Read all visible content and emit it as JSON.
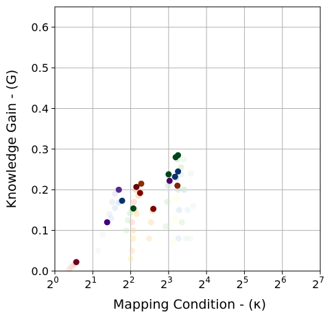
{
  "chart_data": {
    "type": "scatter",
    "title": "",
    "xlabel": "Mapping Condition - (κ)",
    "ylabel": "Knowledge Gain - (G)",
    "x_scale": "log2",
    "xlim": [
      1,
      128
    ],
    "ylim": [
      0,
      0.65
    ],
    "grid": true,
    "x_ticks": [
      {
        "value": 1,
        "base": "2",
        "exp": "0"
      },
      {
        "value": 2,
        "base": "2",
        "exp": "1"
      },
      {
        "value": 4,
        "base": "2",
        "exp": "2"
      },
      {
        "value": 8,
        "base": "2",
        "exp": "3"
      },
      {
        "value": 16,
        "base": "2",
        "exp": "4"
      },
      {
        "value": 32,
        "base": "2",
        "exp": "5"
      },
      {
        "value": 64,
        "base": "2",
        "exp": "6"
      },
      {
        "value": 128,
        "base": "2",
        "exp": "7"
      }
    ],
    "y_ticks": [
      {
        "value": 0.0,
        "label": "0.0"
      },
      {
        "value": 0.1,
        "label": "0.1"
      },
      {
        "value": 0.2,
        "label": "0.2"
      },
      {
        "value": 0.3,
        "label": "0.3"
      },
      {
        "value": 0.4,
        "label": "0.4"
      },
      {
        "value": 0.5,
        "label": "0.5"
      },
      {
        "value": 0.6,
        "label": "0.6"
      }
    ],
    "series": [
      {
        "color": "#6b0120",
        "trail_color": "#f6c9b6",
        "points": [
          {
            "x": 1.3,
            "y": 0.005
          },
          {
            "x": 1.36,
            "y": 0.01
          },
          {
            "x": 1.42,
            "y": 0.016
          },
          {
            "x": 1.46,
            "y": 0.021
          },
          {
            "x": 1.48,
            "y": 0.022
          }
        ]
      },
      {
        "color": "#54278f",
        "trail_color": "#dadaeb",
        "points": [
          {
            "x": 2.7,
            "y": 0.14
          },
          {
            "x": 2.85,
            "y": 0.17
          },
          {
            "x": 3.0,
            "y": 0.19
          },
          {
            "x": 3.15,
            "y": 0.2
          },
          {
            "x": 3.22,
            "y": 0.2
          }
        ]
      },
      {
        "color": "#08306b",
        "trail_color": "#c6dbef",
        "points": [
          {
            "x": 2.8,
            "y": 0.13
          },
          {
            "x": 3.0,
            "y": 0.155
          },
          {
            "x": 3.2,
            "y": 0.168
          },
          {
            "x": 3.35,
            "y": 0.172
          },
          {
            "x": 3.42,
            "y": 0.173
          }
        ]
      },
      {
        "color": "#00441b",
        "trail_color": "#c7e9c0",
        "points": [
          {
            "x": 3.7,
            "y": 0.1
          },
          {
            "x": 3.8,
            "y": 0.125
          },
          {
            "x": 3.95,
            "y": 0.142
          },
          {
            "x": 4.1,
            "y": 0.152
          },
          {
            "x": 4.2,
            "y": 0.154
          }
        ]
      },
      {
        "color": "#7f0000",
        "trail_color": "#fdd49e",
        "points": [
          {
            "x": 4.1,
            "y": 0.05
          },
          {
            "x": 4.2,
            "y": 0.1
          },
          {
            "x": 4.35,
            "y": 0.15
          },
          {
            "x": 4.6,
            "y": 0.185
          },
          {
            "x": 4.75,
            "y": 0.192
          }
        ]
      },
      {
        "color": "#8c2d04",
        "trail_color": "#fee391",
        "points": [
          {
            "x": 4.0,
            "y": 0.03
          },
          {
            "x": 4.2,
            "y": 0.08
          },
          {
            "x": 4.45,
            "y": 0.14
          },
          {
            "x": 4.7,
            "y": 0.195
          },
          {
            "x": 4.85,
            "y": 0.215
          }
        ]
      },
      {
        "color": "#67000d",
        "trail_color": "#fcbba1",
        "points": [
          {
            "x": 4.1,
            "y": 0.12
          },
          {
            "x": 4.25,
            "y": 0.17
          },
          {
            "x": 4.38,
            "y": 0.2
          },
          {
            "x": 4.44,
            "y": 0.207
          }
        ]
      },
      {
        "color": "#7f0000",
        "trail_color": "#fdd49e",
        "points": [
          {
            "x": 5.6,
            "y": 0.08
          },
          {
            "x": 5.8,
            "y": 0.12
          },
          {
            "x": 5.95,
            "y": 0.148
          },
          {
            "x": 6.05,
            "y": 0.153
          }
        ]
      },
      {
        "color": "#00441b",
        "trail_color": "#c7e9c0",
        "points": [
          {
            "x": 7.6,
            "y": 0.11
          },
          {
            "x": 7.8,
            "y": 0.17
          },
          {
            "x": 7.9,
            "y": 0.21
          },
          {
            "x": 7.96,
            "y": 0.235
          },
          {
            "x": 8.0,
            "y": 0.238
          }
        ]
      },
      {
        "color": "#49006a",
        "trail_color": "#e7e1ef",
        "points": [
          {
            "x": 8.05,
            "y": 0.2
          },
          {
            "x": 8.1,
            "y": 0.215
          },
          {
            "x": 8.14,
            "y": 0.222
          }
        ]
      },
      {
        "color": "#08306b",
        "trail_color": "#c6dbef",
        "points": [
          {
            "x": 9.6,
            "y": 0.08
          },
          {
            "x": 9.7,
            "y": 0.15
          },
          {
            "x": 9.5,
            "y": 0.2
          },
          {
            "x": 9.2,
            "y": 0.228
          },
          {
            "x": 9.0,
            "y": 0.232
          }
        ]
      },
      {
        "color": "#08306b",
        "trail_color": "#deebf7",
        "points": [
          {
            "x": 11.0,
            "y": 0.08
          },
          {
            "x": 11.3,
            "y": 0.15
          },
          {
            "x": 10.8,
            "y": 0.2
          },
          {
            "x": 10.0,
            "y": 0.238
          },
          {
            "x": 9.5,
            "y": 0.245
          }
        ]
      },
      {
        "color": "#00441b",
        "trail_color": "#e5f5e0",
        "points": [
          {
            "x": 12.0,
            "y": 0.08
          },
          {
            "x": 12.5,
            "y": 0.16
          },
          {
            "x": 12.0,
            "y": 0.24
          },
          {
            "x": 10.5,
            "y": 0.275
          },
          {
            "x": 9.5,
            "y": 0.285
          }
        ]
      },
      {
        "color": "#00441b",
        "trail_color": "#c7e9c0",
        "points": [
          {
            "x": 10.2,
            "y": 0.12
          },
          {
            "x": 10.5,
            "y": 0.2
          },
          {
            "x": 10.0,
            "y": 0.255
          },
          {
            "x": 9.4,
            "y": 0.275
          },
          {
            "x": 9.1,
            "y": 0.28
          }
        ]
      },
      {
        "color": "#7f2704",
        "trail_color": "#ffffcc",
        "points": [
          {
            "x": 8.8,
            "y": 0.07
          },
          {
            "x": 9.0,
            "y": 0.13
          },
          {
            "x": 9.2,
            "y": 0.18
          },
          {
            "x": 9.4,
            "y": 0.21
          }
        ]
      },
      {
        "color": "#3f007d",
        "trail_color": "#efedf5",
        "points": [
          {
            "x": 2.2,
            "y": 0.05
          },
          {
            "x": 2.4,
            "y": 0.09
          },
          {
            "x": 2.6,
            "y": 0.12
          }
        ]
      }
    ]
  }
}
